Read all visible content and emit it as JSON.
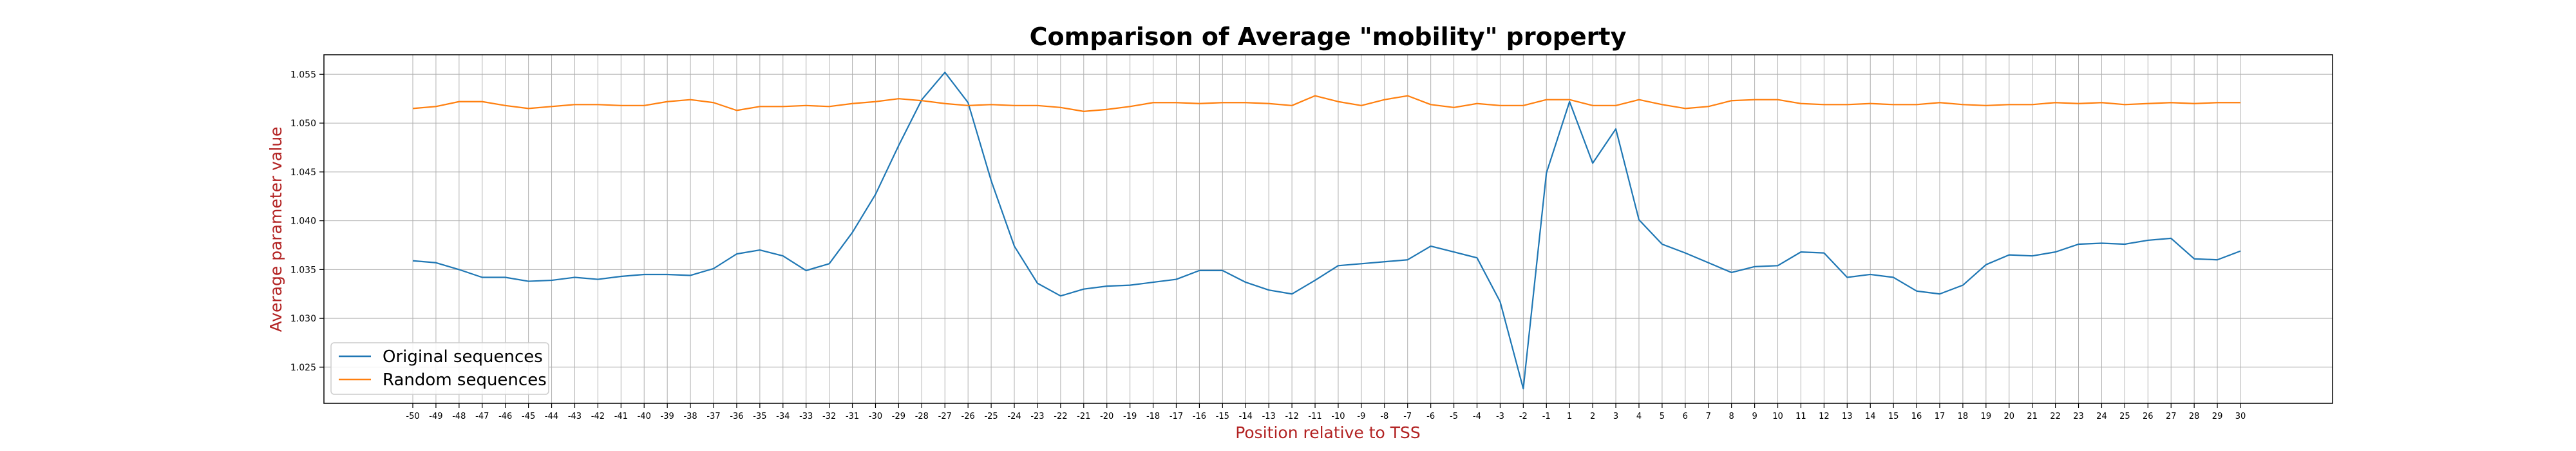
{
  "chart_data": {
    "type": "line",
    "title": "Comparison of Average \"mobility\" property",
    "xlabel": "Position relative to TSS",
    "ylabel": "Average parameter value",
    "x": [
      -50,
      -49,
      -48,
      -47,
      -46,
      -45,
      -44,
      -43,
      -42,
      -41,
      -40,
      -39,
      -38,
      -37,
      -36,
      -35,
      -34,
      -33,
      -32,
      -31,
      -30,
      -29,
      -28,
      -27,
      -26,
      -25,
      -24,
      -23,
      -22,
      -21,
      -20,
      -19,
      -18,
      -17,
      -16,
      -15,
      -14,
      -13,
      -12,
      -11,
      -10,
      -9,
      -8,
      -7,
      -6,
      -5,
      -4,
      -3,
      -2,
      -1,
      1,
      2,
      3,
      4,
      5,
      6,
      7,
      8,
      9,
      10,
      11,
      12,
      13,
      14,
      15,
      16,
      17,
      18,
      19,
      20,
      21,
      22,
      23,
      24,
      25,
      26,
      27,
      28,
      29,
      30
    ],
    "xticks": [
      "-50",
      "-49",
      "-48",
      "-47",
      "-46",
      "-45",
      "-44",
      "-43",
      "-42",
      "-41",
      "-40",
      "-39",
      "-38",
      "-37",
      "-36",
      "-35",
      "-34",
      "-33",
      "-32",
      "-31",
      "-30",
      "-29",
      "-28",
      "-27",
      "-26",
      "-25",
      "-24",
      "-23",
      "-22",
      "-21",
      "-20",
      "-19",
      "-18",
      "-17",
      "-16",
      "-15",
      "-14",
      "-13",
      "-12",
      "-11",
      "-10",
      "-9",
      "-8",
      "-7",
      "-6",
      "-5",
      "-4",
      "-3",
      "-2",
      "-1",
      "1",
      "2",
      "3",
      "4",
      "5",
      "6",
      "7",
      "8",
      "9",
      "10",
      "11",
      "12",
      "13",
      "14",
      "15",
      "16",
      "17",
      "18",
      "19",
      "20",
      "21",
      "22",
      "23",
      "24",
      "25",
      "26",
      "27",
      "28",
      "29",
      "30"
    ],
    "yticks": [
      "1.025",
      "1.030",
      "1.035",
      "1.040",
      "1.045",
      "1.050",
      "1.055"
    ],
    "ytick_values": [
      1.025,
      1.03,
      1.035,
      1.04,
      1.045,
      1.05,
      1.055
    ],
    "ylim": [
      1.0213,
      1.057
    ],
    "grid": true,
    "legend_position": "lower-left",
    "series": [
      {
        "name": "Original sequences",
        "color": "#1f77b4",
        "values": [
          1.0359,
          1.0357,
          1.035,
          1.0342,
          1.0342,
          1.0338,
          1.0339,
          1.0342,
          1.034,
          1.0343,
          1.0345,
          1.0345,
          1.0344,
          1.0351,
          1.0366,
          1.037,
          1.0364,
          1.0349,
          1.0356,
          1.0388,
          1.0427,
          1.0477,
          1.0524,
          1.0552,
          1.0521,
          1.0441,
          1.0374,
          1.0336,
          1.0323,
          1.033,
          1.0333,
          1.0334,
          1.0337,
          1.034,
          1.0349,
          1.0349,
          1.0337,
          1.0329,
          1.0325,
          1.0339,
          1.0354,
          1.0356,
          1.0358,
          1.036,
          1.0374,
          1.0368,
          1.0362,
          1.0317,
          1.0228,
          1.0449,
          1.0522,
          1.0459,
          1.0494,
          1.0401,
          1.0376,
          1.0367,
          1.0357,
          1.0347,
          1.0353,
          1.0354,
          1.0368,
          1.0367,
          1.0342,
          1.0345,
          1.0342,
          1.0328,
          1.0325,
          1.0334,
          1.0355,
          1.0365,
          1.0364,
          1.0368,
          1.0376,
          1.0377,
          1.0376,
          1.038,
          1.0382,
          1.0361,
          1.036,
          1.0369
        ]
      },
      {
        "name": "Random sequences",
        "color": "#ff7f0e",
        "values": [
          1.0515,
          1.0517,
          1.0522,
          1.0522,
          1.0518,
          1.0515,
          1.0517,
          1.0519,
          1.0519,
          1.0518,
          1.0518,
          1.0522,
          1.0524,
          1.0521,
          1.0513,
          1.0517,
          1.0517,
          1.0518,
          1.0517,
          1.052,
          1.0522,
          1.0525,
          1.0523,
          1.052,
          1.0518,
          1.0519,
          1.0518,
          1.0518,
          1.0516,
          1.0512,
          1.0514,
          1.0517,
          1.0521,
          1.0521,
          1.052,
          1.0521,
          1.0521,
          1.052,
          1.0518,
          1.0528,
          1.0522,
          1.0518,
          1.0524,
          1.0528,
          1.0519,
          1.0516,
          1.052,
          1.0518,
          1.0518,
          1.0524,
          1.0524,
          1.0518,
          1.0518,
          1.0524,
          1.0519,
          1.0515,
          1.0517,
          1.0523,
          1.0524,
          1.0524,
          1.052,
          1.0519,
          1.0519,
          1.052,
          1.0519,
          1.0519,
          1.0521,
          1.0519,
          1.0518,
          1.0519,
          1.0519,
          1.0521,
          1.052,
          1.0521,
          1.0519,
          1.052,
          1.0521,
          1.052,
          1.0521,
          1.0521
        ]
      }
    ]
  }
}
